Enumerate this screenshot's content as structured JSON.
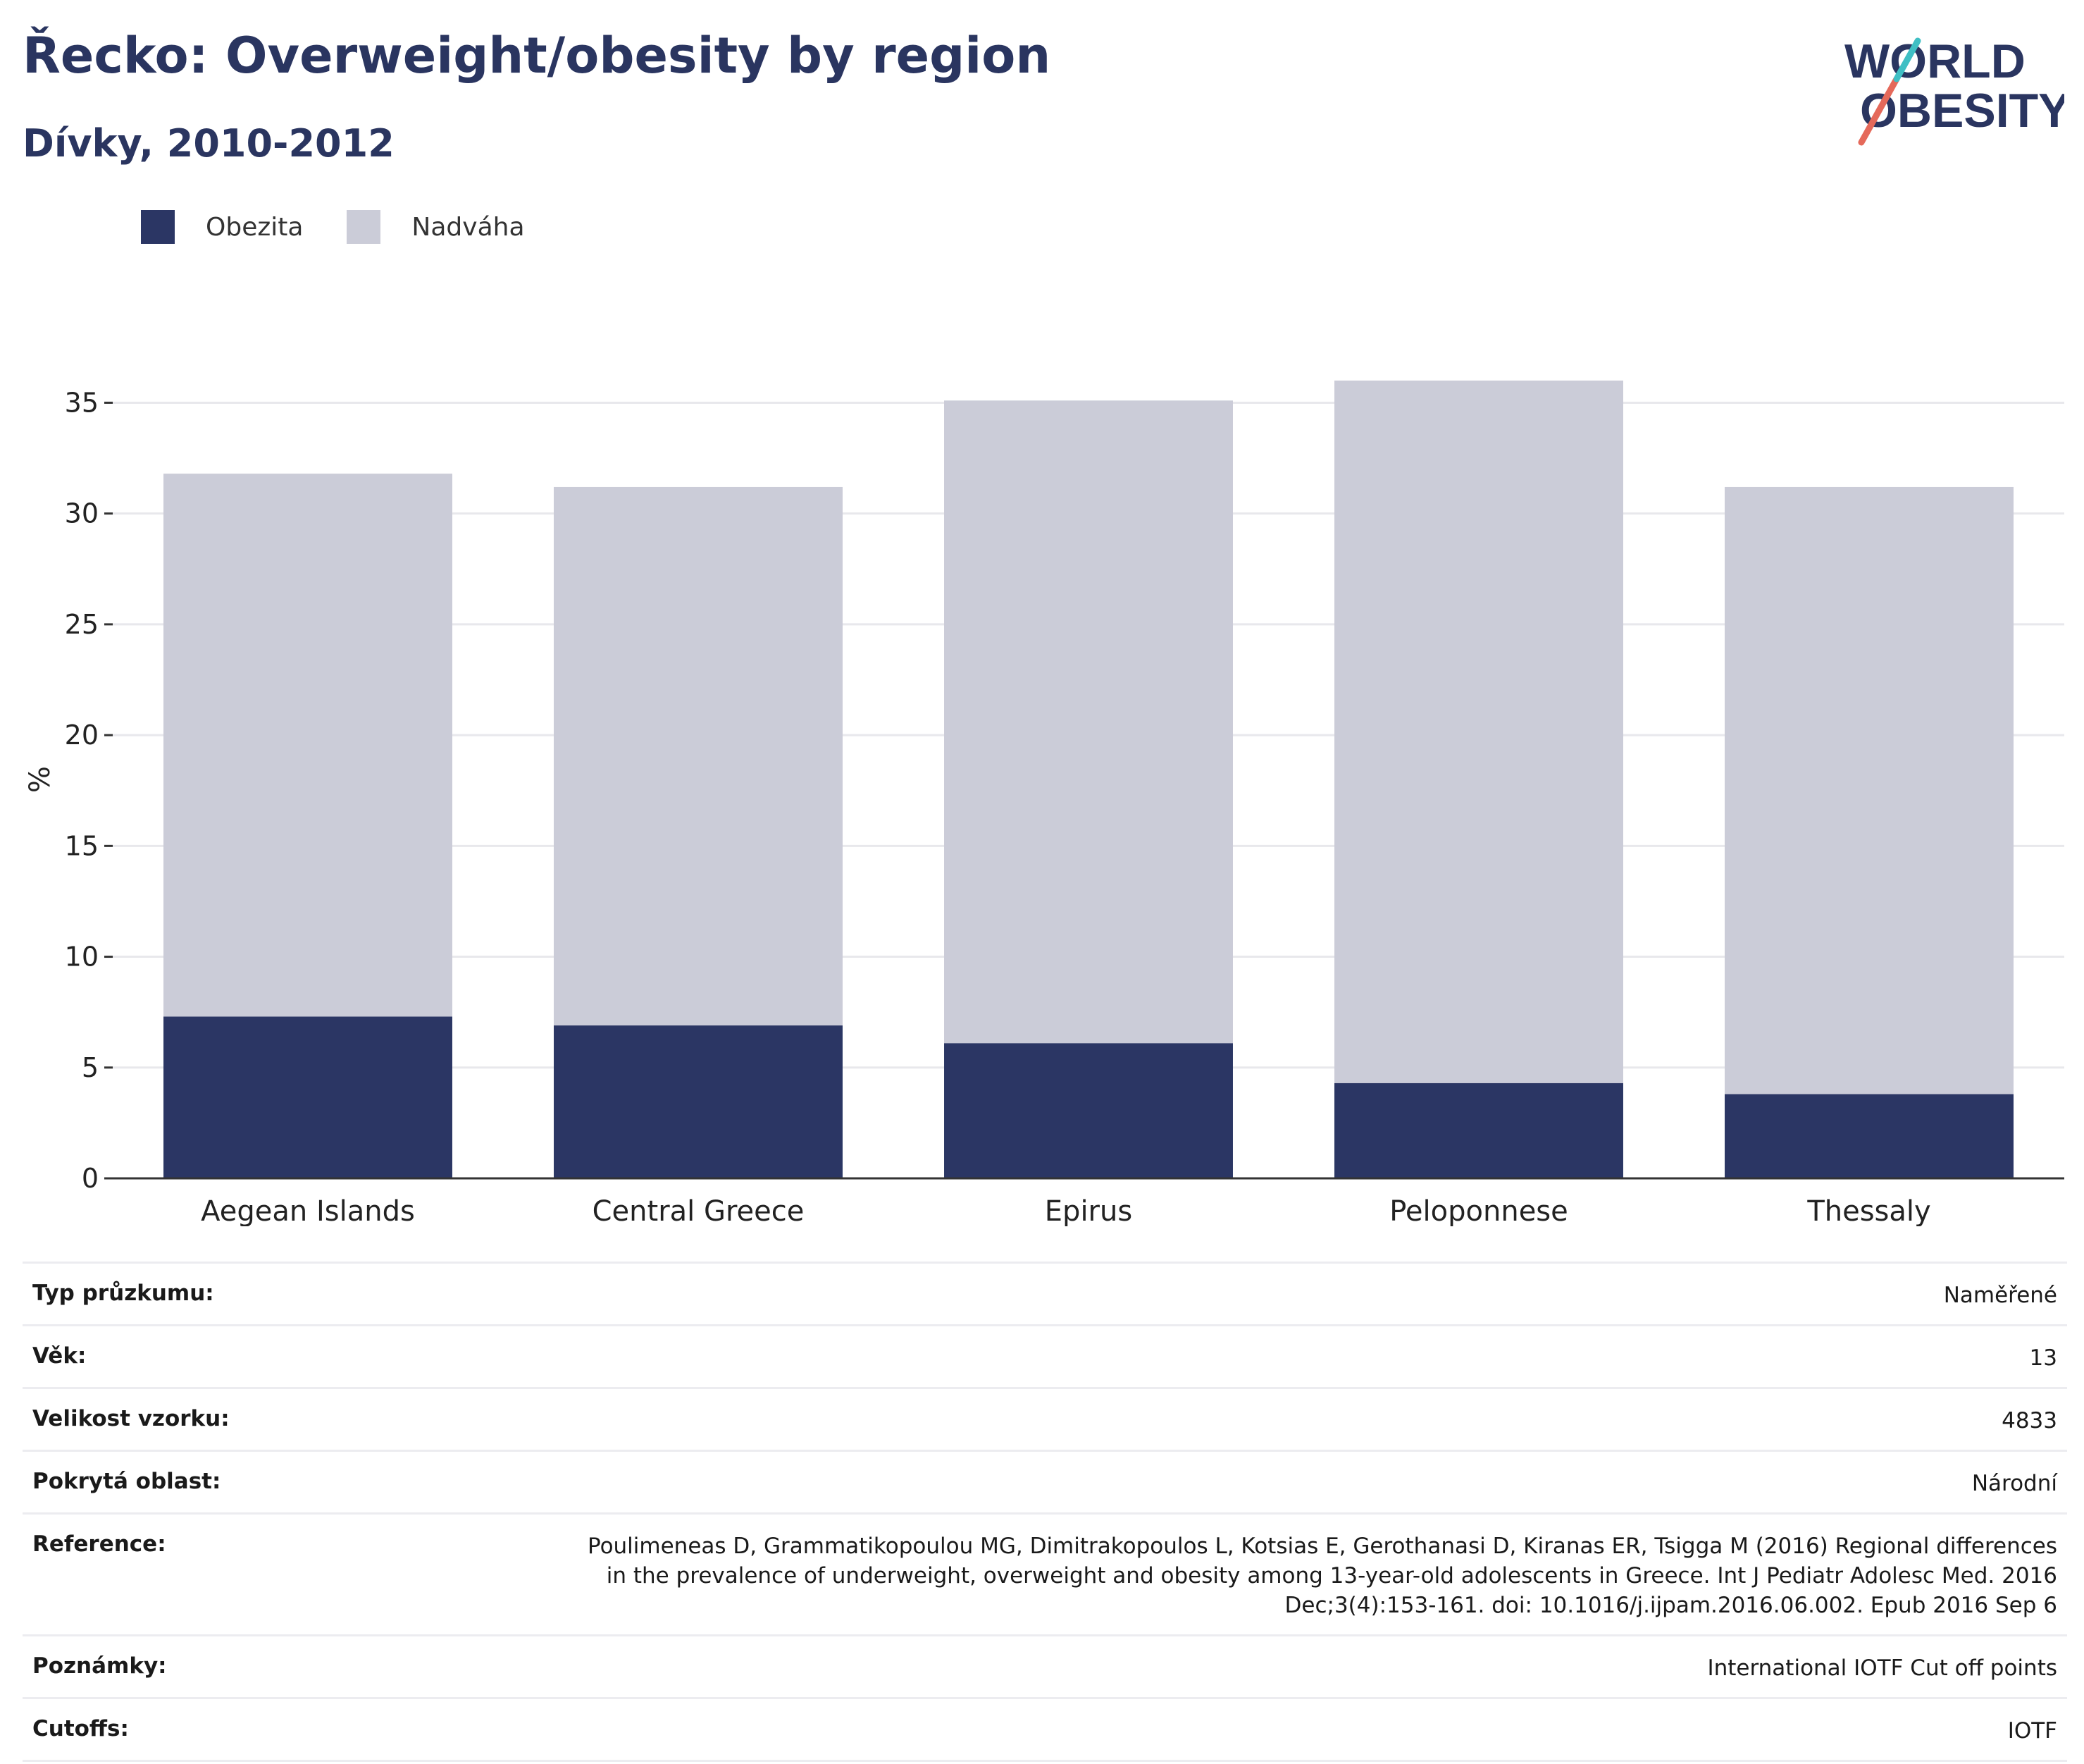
{
  "header": {
    "title": "Řecko: Overweight/obesity by region",
    "subtitle": "Dívky, 2010-2012"
  },
  "logo": {
    "line1": "WORLD",
    "line2": "OBESITY",
    "colors": {
      "text": "#2a3560",
      "slash_red": "#e5695a",
      "slash_teal": "#3fbfc4"
    }
  },
  "legend": [
    {
      "label": "Obezita",
      "color": "#2b3664"
    },
    {
      "label": "Nadváha",
      "color": "#cbccd8"
    }
  ],
  "chart_data": {
    "type": "bar",
    "stacked": true,
    "categories": [
      "Aegean Islands",
      "Central Greece",
      "Epirus",
      "Peloponnese",
      "Thessaly"
    ],
    "series": [
      {
        "name": "Obezita",
        "values": [
          7.3,
          6.9,
          6.1,
          4.3,
          3.8
        ],
        "color": "#2b3664"
      },
      {
        "name": "Nadváha",
        "values": [
          24.5,
          24.3,
          29.0,
          31.7,
          27.4
        ],
        "color": "#cbccd8"
      }
    ],
    "ylabel": "%",
    "ylim": [
      0,
      36
    ],
    "yticks": [
      0,
      5,
      10,
      15,
      20,
      25,
      30,
      35
    ],
    "grid": true,
    "legend_position": "top-left"
  },
  "info": [
    {
      "label": "Typ průzkumu:",
      "value": "Naměřené"
    },
    {
      "label": "Věk:",
      "value": "13"
    },
    {
      "label": "Velikost vzorku:",
      "value": "4833"
    },
    {
      "label": "Pokrytá oblast:",
      "value": "Národní"
    },
    {
      "label": "Reference:",
      "lines": [
        "Poulimeneas D, Grammatikopoulou MG, Dimitrakopoulos L, Kotsias E, Gerothanasi D, Kiranas ER, Tsigga M (2016) Regional differences",
        "in the prevalence of underweight, overweight and obesity among 13-year-old adolescents in Greece. Int J Pediatr Adolesc Med. 2016",
        "Dec;3(4):153-161. doi: 10.1016/j.ijpam.2016.06.002. Epub 2016 Sep 6"
      ]
    },
    {
      "label": "Poznámky:",
      "value": "International IOTF Cut off points"
    },
    {
      "label": "Cutoffs:",
      "value": "IOTF"
    }
  ]
}
